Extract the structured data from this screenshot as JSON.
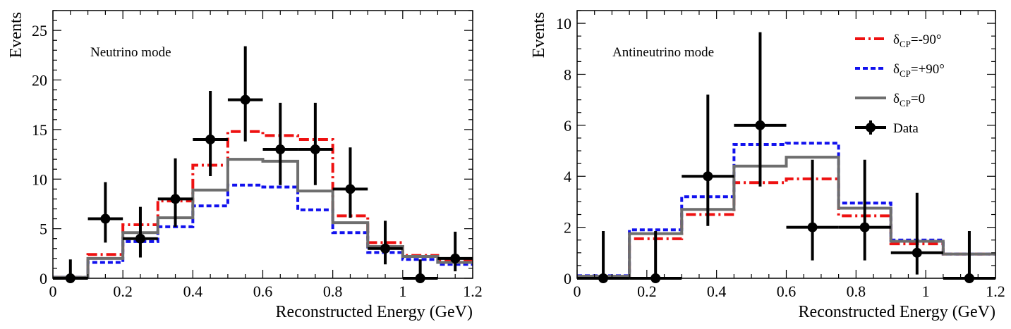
{
  "chart_data": [
    {
      "type": "histogram",
      "id": "neutrino",
      "panel_label": "Neutrino mode",
      "xlabel": "Reconstructed Energy (GeV)",
      "ylabel": "Events",
      "xlim": [
        0,
        1.2
      ],
      "ylim": [
        0,
        27
      ],
      "xticks": [
        0,
        0.2,
        0.4,
        0.6,
        0.8,
        1,
        1.2
      ],
      "xtick_labels": [
        "0",
        "0.2",
        "0.4",
        "0.6",
        "0.8",
        "1",
        "1.2"
      ],
      "yticks": [
        0,
        5,
        10,
        15,
        20,
        25
      ],
      "ytick_labels": [
        "0",
        "5",
        "10",
        "15",
        "20",
        "25"
      ],
      "bin_edges": [
        0,
        0.1,
        0.2,
        0.3,
        0.4,
        0.5,
        0.6,
        0.7,
        0.8,
        0.9,
        1.0,
        1.1,
        1.2
      ],
      "series": [
        {
          "name": "δCP=-90°",
          "color": "#ee1111",
          "style": "dash-dot",
          "values": [
            0.1,
            2.4,
            5.4,
            7.8,
            11.4,
            14.8,
            14.4,
            14.0,
            6.3,
            3.6,
            2.3,
            1.8
          ]
        },
        {
          "name": "δCP=+90°",
          "color": "#1111ee",
          "style": "dotted",
          "values": [
            0.1,
            1.6,
            3.7,
            5.2,
            7.3,
            9.4,
            9.2,
            6.9,
            4.6,
            2.6,
            1.9,
            1.4
          ]
        },
        {
          "name": "δCP=0",
          "color": "#6e6e6e",
          "style": "solid",
          "values": [
            0.1,
            2.0,
            4.6,
            6.1,
            8.9,
            12.0,
            11.8,
            8.8,
            5.6,
            3.2,
            2.2,
            1.6
          ]
        }
      ],
      "data_points": {
        "name": "Data",
        "x": [
          0.05,
          0.15,
          0.25,
          0.35,
          0.45,
          0.55,
          0.65,
          0.75,
          0.85,
          0.95,
          1.05,
          1.15
        ],
        "y": [
          0,
          6,
          4,
          8,
          14,
          18,
          13,
          13,
          9,
          3,
          0,
          2
        ],
        "yerr_up": [
          1.9,
          3.7,
          3.2,
          4.1,
          4.9,
          5.4,
          4.7,
          4.7,
          4.2,
          2.8,
          1.9,
          2.7
        ],
        "yerr_down": [
          0,
          2.4,
          1.9,
          2.8,
          3.7,
          4.2,
          3.6,
          3.6,
          2.9,
          1.6,
          0,
          1.3
        ]
      }
    },
    {
      "type": "histogram",
      "id": "antineutrino",
      "panel_label": "Antineutrino mode",
      "xlabel": "Reconstructed Energy (GeV)",
      "ylabel": "Events",
      "xlim": [
        0,
        1.2
      ],
      "ylim": [
        0,
        10.5
      ],
      "xticks": [
        0,
        0.2,
        0.4,
        0.6,
        0.8,
        1,
        1.2
      ],
      "xtick_labels": [
        "0",
        "0.2",
        "0.4",
        "0.6",
        "0.8",
        "1",
        "1.2"
      ],
      "yticks": [
        0,
        2,
        4,
        6,
        8,
        10
      ],
      "ytick_labels": [
        "0",
        "2",
        "4",
        "6",
        "8",
        "10"
      ],
      "bin_edges": [
        0,
        0.15,
        0.3,
        0.45,
        0.6,
        0.75,
        0.9,
        1.05,
        1.2
      ],
      "series": [
        {
          "name": "δCP=-90°",
          "color": "#ee1111",
          "style": "dash-dot",
          "values": [
            0.05,
            1.55,
            2.5,
            3.75,
            3.9,
            2.45,
            1.35,
            0.95
          ]
        },
        {
          "name": "δCP=+90°",
          "color": "#1111ee",
          "style": "dotted",
          "values": [
            0.1,
            1.9,
            3.2,
            5.25,
            5.3,
            2.95,
            1.5,
            0.95
          ]
        },
        {
          "name": "δCP=0",
          "color": "#6e6e6e",
          "style": "solid",
          "values": [
            0.08,
            1.75,
            2.7,
            4.4,
            4.75,
            2.75,
            1.45,
            0.95
          ]
        }
      ],
      "data_points": {
        "name": "Data",
        "x": [
          0.075,
          0.225,
          0.375,
          0.525,
          0.675,
          0.825,
          0.975,
          1.125
        ],
        "y": [
          0,
          0,
          4,
          6,
          2,
          2,
          1,
          0
        ],
        "yerr_up": [
          1.85,
          1.85,
          3.2,
          3.65,
          2.65,
          2.65,
          2.35,
          1.85
        ],
        "yerr_down": [
          0,
          0,
          1.95,
          2.4,
          1.3,
          1.3,
          0.85,
          0
        ]
      },
      "legend": {
        "placement": "top-right",
        "entries": [
          {
            "label": "δ",
            "sub": "CP",
            "suffix": "=-90°",
            "color": "#ee1111",
            "style": "dash-dot"
          },
          {
            "label": "δ",
            "sub": "CP",
            "suffix": "=+90°",
            "color": "#1111ee",
            "style": "dotted"
          },
          {
            "label": "δ",
            "sub": "CP",
            "suffix": "=0",
            "color": "#6e6e6e",
            "style": "solid"
          },
          {
            "label": "Data",
            "sub": "",
            "suffix": "",
            "color": "#000000",
            "style": "marker"
          }
        ]
      }
    }
  ]
}
